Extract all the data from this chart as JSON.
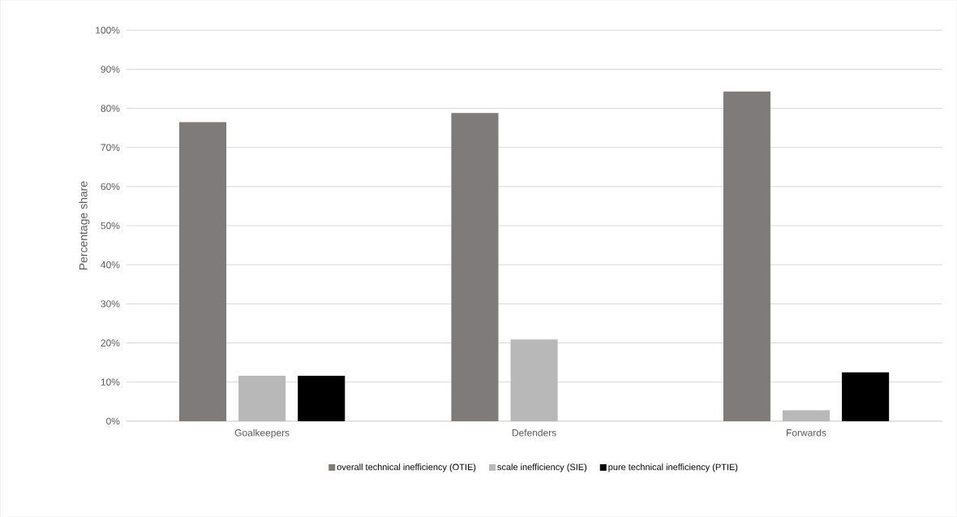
{
  "chart_data": {
    "type": "bar",
    "ylabel": "Percentage share",
    "categories": [
      "Goalkeepers",
      "Defenders",
      "Forwards"
    ],
    "series": [
      {
        "name": "overall technical inefficiency (OTIE)",
        "color": "#7f7b7a",
        "values": [
          76.5,
          78.8,
          84.3
        ]
      },
      {
        "name": "scale inefficiency (SIE)",
        "color": "#b8b8b8",
        "values": [
          11.6,
          20.9,
          2.8
        ]
      },
      {
        "name": "pure technical inefficiency (PTIE)",
        "color": "#000000",
        "values": [
          11.6,
          0,
          12.5
        ]
      }
    ],
    "ylim": [
      0,
      100
    ],
    "yticks": [
      {
        "value": 0,
        "label": "0%"
      },
      {
        "value": 10,
        "label": "10%"
      },
      {
        "value": 20,
        "label": "20%"
      },
      {
        "value": 30,
        "label": "30%"
      },
      {
        "value": 40,
        "label": "40%"
      },
      {
        "value": 50,
        "label": "50%"
      },
      {
        "value": 60,
        "label": "60%"
      },
      {
        "value": 70,
        "label": "70%"
      },
      {
        "value": 80,
        "label": "80%"
      },
      {
        "value": 90,
        "label": "90%"
      },
      {
        "value": 100,
        "label": "100%"
      }
    ],
    "grid": "y",
    "legend": "bottom"
  }
}
